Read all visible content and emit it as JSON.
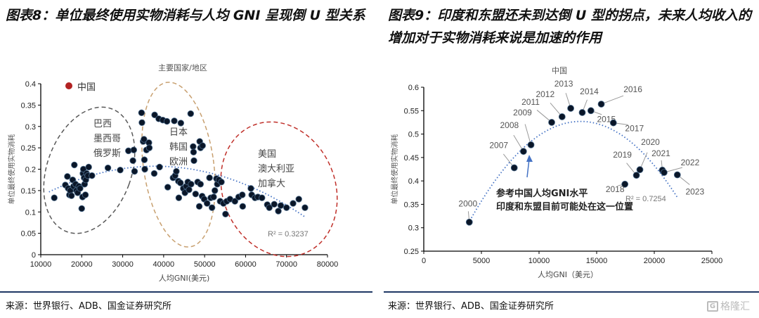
{
  "header": {
    "left_title": "图表8：单位最终使用实物消耗与人均 GNI 呈现倒 U 型关系",
    "right_title": "图表9：印度和东盟还未到达倒 U 型的拐点，未来人均收入的增加对于实物消耗来说是加速的作用"
  },
  "footer": {
    "left_source": "来源：世界银行、ADB、国金证券研究所",
    "right_source": "来源：世界银行、ADB、国金证券研究所",
    "logo_text": "格隆汇"
  },
  "colors": {
    "point": "#0a1628",
    "trend": "#4472c4",
    "china": "#b22222",
    "gray_ellipse": "#595959",
    "tan_ellipse": "#c8a070",
    "red_ellipse": "#c0302a",
    "rule": "#1f3864"
  },
  "chart_data": [
    {
      "type": "scatter",
      "title": "主要国家/地区",
      "xlabel": "人均GNI(美元)",
      "ylabel": "单位最终使用实物消耗",
      "xlim": [
        10000,
        80000
      ],
      "ylim": [
        0,
        0.4
      ],
      "xticks": [
        "10000",
        "20000",
        "30000",
        "40000",
        "50000",
        "60000",
        "70000",
        "80000"
      ],
      "yticks": [
        "0",
        "0.05",
        "0.1",
        "0.15",
        "0.2",
        "0.25",
        "0.3",
        "0.35",
        "0.4"
      ],
      "legend": "中国",
      "r2": "R² = 0.3237",
      "trend": {
        "type": "poly2",
        "peak_x": 38000,
        "peak_y": 0.207,
        "a": -8.9e-11,
        "x_range": [
          12000,
          74500
        ]
      },
      "groups": [
        {
          "label": [
            "巴西",
            "墨西哥",
            "俄罗斯"
          ]
        },
        {
          "label": [
            "日本",
            "韩国",
            "欧洲"
          ]
        },
        {
          "label": [
            "美国",
            "澳大利亚",
            "加拿大"
          ]
        }
      ],
      "points": [
        [
          13300,
          0.133
        ],
        [
          16000,
          0.163
        ],
        [
          16500,
          0.183
        ],
        [
          16700,
          0.155
        ],
        [
          17000,
          0.14
        ],
        [
          17200,
          0.15
        ],
        [
          17500,
          0.138
        ],
        [
          17800,
          0.175
        ],
        [
          18000,
          0.16
        ],
        [
          18200,
          0.21
        ],
        [
          18500,
          0.165
        ],
        [
          18700,
          0.15
        ],
        [
          19000,
          0.145
        ],
        [
          19300,
          0.16
        ],
        [
          19600,
          0.155
        ],
        [
          20000,
          0.108
        ],
        [
          20200,
          0.135
        ],
        [
          20300,
          0.19
        ],
        [
          20400,
          0.2
        ],
        [
          20600,
          0.18
        ],
        [
          20700,
          0.165
        ],
        [
          20900,
          0.14
        ],
        [
          21000,
          0.175
        ],
        [
          21200,
          0.19
        ],
        [
          21500,
          0.185
        ],
        [
          21700,
          0.205
        ],
        [
          22500,
          0.185
        ],
        [
          26400,
          0.203
        ],
        [
          29400,
          0.198
        ],
        [
          31400,
          0.243
        ],
        [
          32500,
          0.22
        ],
        [
          32700,
          0.245
        ],
        [
          32900,
          0.195
        ],
        [
          34600,
          0.332
        ],
        [
          34700,
          0.309
        ],
        [
          35000,
          0.265
        ],
        [
          35200,
          0.27
        ],
        [
          35300,
          0.222
        ],
        [
          35400,
          0.2
        ],
        [
          35800,
          0.245
        ],
        [
          36400,
          0.262
        ],
        [
          36500,
          0.25
        ],
        [
          37800,
          0.327
        ],
        [
          38800,
          0.318
        ],
        [
          39800,
          0.315
        ],
        [
          40800,
          0.312
        ],
        [
          42600,
          0.313
        ],
        [
          44200,
          0.308
        ],
        [
          46600,
          0.33
        ],
        [
          47200,
          0.253
        ],
        [
          47300,
          0.24
        ],
        [
          47400,
          0.22
        ],
        [
          48800,
          0.265
        ],
        [
          49000,
          0.25
        ],
        [
          49500,
          0.255
        ],
        [
          37700,
          0.19
        ],
        [
          39000,
          0.205
        ],
        [
          41000,
          0.158
        ],
        [
          42300,
          0.18
        ],
        [
          42800,
          0.185
        ],
        [
          43100,
          0.195
        ],
        [
          43600,
          0.172
        ],
        [
          43700,
          0.133
        ],
        [
          44100,
          0.168
        ],
        [
          44800,
          0.155
        ],
        [
          45200,
          0.145
        ],
        [
          45500,
          0.16
        ],
        [
          45900,
          0.17
        ],
        [
          46200,
          0.152
        ],
        [
          46700,
          0.165
        ],
        [
          47800,
          0.142
        ],
        [
          48300,
          0.17
        ],
        [
          48700,
          0.113
        ],
        [
          49000,
          0.165
        ],
        [
          49400,
          0.137
        ],
        [
          49900,
          0.13
        ],
        [
          50600,
          0.12
        ],
        [
          51200,
          0.18
        ],
        [
          51500,
          0.133
        ],
        [
          51800,
          0.11
        ],
        [
          52200,
          0.135
        ],
        [
          52500,
          0.15
        ],
        [
          52900,
          0.178
        ],
        [
          53100,
          0.165
        ],
        [
          53500,
          0.175
        ],
        [
          53800,
          0.125
        ],
        [
          54100,
          0.17
        ],
        [
          54600,
          0.12
        ],
        [
          55100,
          0.095
        ],
        [
          55400,
          0.125
        ],
        [
          56200,
          0.13
        ],
        [
          57400,
          0.125
        ],
        [
          58300,
          0.135
        ],
        [
          59200,
          0.14
        ],
        [
          59300,
          0.113
        ],
        [
          61300,
          0.155
        ],
        [
          61500,
          0.14
        ],
        [
          62300,
          0.133
        ],
        [
          63000,
          0.135
        ],
        [
          64000,
          0.133
        ],
        [
          65300,
          0.117
        ],
        [
          65800,
          0.11
        ],
        [
          67000,
          0.118
        ],
        [
          68000,
          0.102
        ],
        [
          68600,
          0.115
        ],
        [
          70000,
          0.11
        ],
        [
          71600,
          0.12
        ],
        [
          73000,
          0.13
        ],
        [
          74500,
          0.11
        ]
      ]
    },
    {
      "type": "scatter",
      "title": "中国",
      "xlabel": "人均GNI（美元）",
      "ylabel": "单位最终使用实物消耗",
      "xlim": [
        0,
        25000
      ],
      "ylim": [
        0.25,
        0.6
      ],
      "xticks": [
        "0",
        "5000",
        "10000",
        "15000",
        "20000",
        "25000"
      ],
      "yticks": [
        "0.25",
        "0.3",
        "0.35",
        "0.4",
        "0.45",
        "0.5",
        "0.55",
        "0.6"
      ],
      "r2": "R² = 0.7254",
      "trend": {
        "type": "poly2",
        "peak_x": 13600,
        "peak_y": 0.527,
        "a": -2.3e-09,
        "x_range": [
          4000,
          22000
        ]
      },
      "annotation": [
        "参考中国人均GNI水平",
        "印度和东盟目前可能处在这一位置"
      ],
      "points": [
        {
          "year": "2000",
          "x": 3950,
          "y": 0.312
        },
        {
          "year": "2007",
          "x": 7850,
          "y": 0.428
        },
        {
          "year": "2008",
          "x": 8650,
          "y": 0.463
        },
        {
          "year": "2009",
          "x": 9300,
          "y": 0.477
        },
        {
          "year": "2011",
          "x": 11100,
          "y": 0.525
        },
        {
          "year": "2012",
          "x": 12000,
          "y": 0.537
        },
        {
          "year": "2013",
          "x": 12750,
          "y": 0.555
        },
        {
          "year": "2014",
          "x": 13750,
          "y": 0.546
        },
        {
          "year": "2015",
          "x": 14500,
          "y": 0.55
        },
        {
          "year": "2016",
          "x": 15400,
          "y": 0.564
        },
        {
          "year": "2017",
          "x": 16450,
          "y": 0.524
        },
        {
          "year": "2018",
          "x": 17450,
          "y": 0.393
        },
        {
          "year": "2019",
          "x": 18450,
          "y": 0.412
        },
        {
          "year": "2020",
          "x": 18750,
          "y": 0.424
        },
        {
          "year": "2021",
          "x": 20700,
          "y": 0.423
        },
        {
          "year": "2022",
          "x": 20850,
          "y": 0.418
        },
        {
          "year": "2023",
          "x": 22000,
          "y": 0.413
        }
      ]
    }
  ]
}
